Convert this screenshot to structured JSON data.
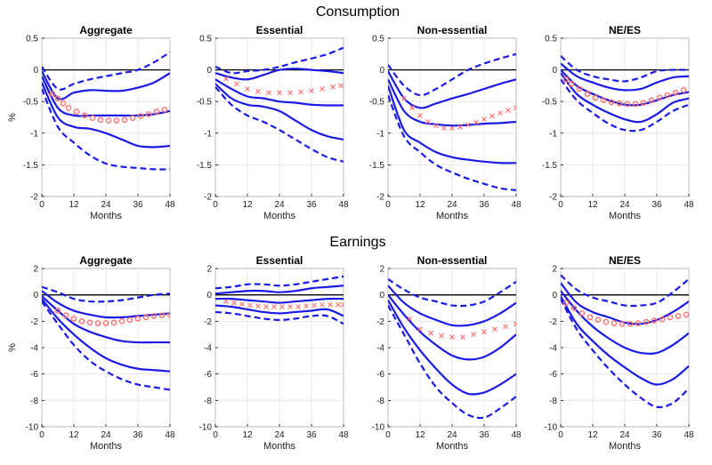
{
  "figure": {
    "rows": [
      {
        "title": "Consumption"
      },
      {
        "title": "Earnings"
      }
    ]
  },
  "colors": {
    "irf_line": "#1a1ae6",
    "marker": "#ff6e6e",
    "zero_line": "#000000",
    "grid": "#e4e4e4"
  },
  "chart_data": [
    {
      "type": "line",
      "title": "Aggregate",
      "xlabel": "Months",
      "ylabel": "%",
      "xlim": [
        0,
        48
      ],
      "ylim": [
        -2,
        0.5
      ],
      "xticks": [
        0,
        12,
        24,
        36,
        48
      ],
      "yticks": [
        0.5,
        0,
        -0.5,
        -1,
        -1.5,
        -2
      ],
      "x": [
        0,
        6,
        12,
        18,
        24,
        30,
        36,
        42,
        48
      ],
      "series": [
        {
          "style": "dashed",
          "values": [
            0.05,
            -0.3,
            -0.22,
            -0.15,
            -0.1,
            -0.05,
            0.0,
            0.12,
            0.28
          ]
        },
        {
          "style": "solid",
          "values": [
            -0.02,
            -0.45,
            -0.36,
            -0.32,
            -0.33,
            -0.33,
            -0.28,
            -0.2,
            -0.05
          ]
        },
        {
          "style": "solid",
          "values": [
            -0.1,
            -0.6,
            -0.72,
            -0.72,
            -0.72,
            -0.72,
            -0.72,
            -0.7,
            -0.65
          ]
        },
        {
          "style": "solid",
          "values": [
            -0.2,
            -0.75,
            -0.9,
            -0.93,
            -1.0,
            -1.1,
            -1.2,
            -1.22,
            -1.2
          ]
        },
        {
          "style": "dashed",
          "values": [
            -0.3,
            -0.9,
            -1.15,
            -1.35,
            -1.48,
            -1.53,
            -1.55,
            -1.57,
            -1.57
          ]
        },
        {
          "style": "markers",
          "marker": "o",
          "x": [
            4,
            6,
            8,
            10,
            13,
            16,
            19,
            22,
            25,
            28,
            31,
            34,
            37,
            40,
            43,
            46
          ],
          "values": [
            -0.38,
            -0.45,
            -0.53,
            -0.6,
            -0.66,
            -0.72,
            -0.76,
            -0.79,
            -0.8,
            -0.8,
            -0.79,
            -0.76,
            -0.73,
            -0.7,
            -0.66,
            -0.63
          ]
        }
      ]
    },
    {
      "type": "line",
      "title": "Essential",
      "xlabel": "Months",
      "ylabel": "",
      "xlim": [
        0,
        48
      ],
      "ylim": [
        -2,
        0.5
      ],
      "xticks": [
        0,
        12,
        24,
        36,
        48
      ],
      "yticks": [
        0.5,
        0,
        -0.5,
        -1,
        -1.5,
        -2
      ],
      "x": [
        0,
        6,
        12,
        18,
        24,
        30,
        36,
        42,
        48
      ],
      "series": [
        {
          "style": "dashed",
          "values": [
            0.05,
            -0.05,
            -0.02,
            0.0,
            0.05,
            0.12,
            0.18,
            0.25,
            0.35
          ]
        },
        {
          "style": "solid",
          "values": [
            -0.05,
            -0.12,
            -0.15,
            -0.08,
            0.0,
            0.02,
            0.0,
            -0.02,
            -0.05
          ]
        },
        {
          "style": "solid",
          "values": [
            -0.15,
            -0.3,
            -0.42,
            -0.45,
            -0.5,
            -0.52,
            -0.55,
            -0.56,
            -0.56
          ]
        },
        {
          "style": "solid",
          "values": [
            -0.22,
            -0.45,
            -0.55,
            -0.58,
            -0.65,
            -0.8,
            -0.95,
            -1.05,
            -1.1
          ]
        },
        {
          "style": "dashed",
          "values": [
            -0.27,
            -0.55,
            -0.72,
            -0.82,
            -0.95,
            -1.1,
            -1.25,
            -1.38,
            -1.45
          ]
        },
        {
          "style": "markers",
          "marker": "x",
          "x": [
            4,
            8,
            12,
            16,
            20,
            24,
            28,
            32,
            36,
            40,
            44,
            47
          ],
          "values": [
            -0.14,
            -0.22,
            -0.3,
            -0.34,
            -0.36,
            -0.36,
            -0.36,
            -0.35,
            -0.33,
            -0.3,
            -0.27,
            -0.25
          ]
        }
      ]
    },
    {
      "type": "line",
      "title": "Non-essential",
      "xlabel": "Months",
      "ylabel": "",
      "xlim": [
        0,
        48
      ],
      "ylim": [
        -2,
        0.5
      ],
      "xticks": [
        0,
        12,
        24,
        36,
        48
      ],
      "yticks": [
        0.5,
        0,
        -0.5,
        -1,
        -1.5,
        -2
      ],
      "x": [
        0,
        6,
        12,
        18,
        24,
        30,
        36,
        42,
        48
      ],
      "series": [
        {
          "style": "dashed",
          "values": [
            0.08,
            -0.25,
            -0.4,
            -0.3,
            -0.15,
            0.0,
            0.1,
            0.18,
            0.25
          ]
        },
        {
          "style": "solid",
          "values": [
            -0.02,
            -0.45,
            -0.6,
            -0.53,
            -0.45,
            -0.38,
            -0.3,
            -0.22,
            -0.15
          ]
        },
        {
          "style": "solid",
          "values": [
            -0.15,
            -0.65,
            -0.82,
            -0.86,
            -0.88,
            -0.87,
            -0.85,
            -0.84,
            -0.82
          ]
        },
        {
          "style": "solid",
          "values": [
            -0.25,
            -0.95,
            -1.15,
            -1.3,
            -1.38,
            -1.42,
            -1.45,
            -1.47,
            -1.47
          ]
        },
        {
          "style": "dashed",
          "values": [
            -0.4,
            -1.05,
            -1.3,
            -1.5,
            -1.62,
            -1.72,
            -1.8,
            -1.87,
            -1.9
          ]
        },
        {
          "style": "markers",
          "marker": "x",
          "x": [
            6,
            9,
            12,
            15,
            18,
            21,
            24,
            27,
            30,
            33,
            36,
            39,
            42,
            45,
            48
          ],
          "values": [
            -0.45,
            -0.6,
            -0.72,
            -0.82,
            -0.88,
            -0.92,
            -0.92,
            -0.9,
            -0.87,
            -0.83,
            -0.78,
            -0.73,
            -0.68,
            -0.64,
            -0.6
          ]
        }
      ]
    },
    {
      "type": "line",
      "title": "NE/ES",
      "xlabel": "Months",
      "ylabel": "",
      "xlim": [
        0,
        48
      ],
      "ylim": [
        -2,
        0.5
      ],
      "xticks": [
        0,
        12,
        24,
        36,
        48
      ],
      "yticks": [
        0.5,
        0,
        -0.5,
        -1,
        -1.5,
        -2
      ],
      "x": [
        0,
        6,
        12,
        18,
        24,
        30,
        36,
        42,
        48
      ],
      "series": [
        {
          "style": "dashed",
          "values": [
            0.22,
            0.0,
            -0.1,
            -0.15,
            -0.18,
            -0.12,
            -0.02,
            0.0,
            0.0
          ]
        },
        {
          "style": "solid",
          "values": [
            0.1,
            -0.1,
            -0.2,
            -0.28,
            -0.32,
            -0.3,
            -0.2,
            -0.12,
            -0.1
          ]
        },
        {
          "style": "solid",
          "values": [
            0.0,
            -0.25,
            -0.38,
            -0.48,
            -0.55,
            -0.55,
            -0.48,
            -0.4,
            -0.35
          ]
        },
        {
          "style": "solid",
          "values": [
            -0.05,
            -0.38,
            -0.55,
            -0.68,
            -0.78,
            -0.82,
            -0.7,
            -0.52,
            -0.45
          ]
        },
        {
          "style": "dashed",
          "values": [
            -0.15,
            -0.48,
            -0.68,
            -0.85,
            -0.95,
            -0.95,
            -0.82,
            -0.65,
            -0.55
          ]
        },
        {
          "style": "markers",
          "marker": "o",
          "x": [
            2,
            4,
            7,
            10,
            13,
            16,
            19,
            22,
            25,
            28,
            31,
            34,
            37,
            40,
            43,
            46
          ],
          "values": [
            -0.15,
            -0.22,
            -0.3,
            -0.38,
            -0.44,
            -0.48,
            -0.51,
            -0.53,
            -0.54,
            -0.54,
            -0.52,
            -0.48,
            -0.44,
            -0.4,
            -0.36,
            -0.32
          ]
        }
      ]
    },
    {
      "type": "line",
      "title": "Aggregate",
      "xlabel": "Months",
      "ylabel": "%",
      "xlim": [
        0,
        48
      ],
      "ylim": [
        -10,
        2
      ],
      "xticks": [
        0,
        12,
        24,
        36,
        48
      ],
      "yticks": [
        2,
        0,
        -2,
        -4,
        -6,
        -8,
        -10
      ],
      "x": [
        0,
        6,
        12,
        18,
        24,
        30,
        36,
        42,
        48
      ],
      "series": [
        {
          "style": "dashed",
          "values": [
            0.6,
            0.2,
            -0.3,
            -0.5,
            -0.5,
            -0.4,
            -0.2,
            0.0,
            0.1
          ]
        },
        {
          "style": "solid",
          "values": [
            0.3,
            -0.6,
            -1.2,
            -1.5,
            -1.7,
            -1.7,
            -1.6,
            -1.5,
            -1.4
          ]
        },
        {
          "style": "solid",
          "values": [
            -0.1,
            -1.2,
            -2.2,
            -2.8,
            -3.2,
            -3.5,
            -3.6,
            -3.6,
            -3.6
          ]
        },
        {
          "style": "solid",
          "values": [
            -0.3,
            -1.8,
            -3.0,
            -4.0,
            -4.8,
            -5.3,
            -5.6,
            -5.7,
            -5.8
          ]
        },
        {
          "style": "dashed",
          "values": [
            -0.5,
            -2.2,
            -3.8,
            -5.0,
            -5.8,
            -6.4,
            -6.8,
            -7.0,
            -7.2
          ]
        },
        {
          "style": "markers",
          "marker": "o",
          "x": [
            6,
            9,
            12,
            15,
            18,
            21,
            24,
            27,
            30,
            33,
            36,
            39,
            42,
            45,
            48
          ],
          "values": [
            -1.2,
            -1.55,
            -1.8,
            -2.0,
            -2.1,
            -2.15,
            -2.15,
            -2.1,
            -2.0,
            -1.9,
            -1.8,
            -1.7,
            -1.6,
            -1.55,
            -1.5
          ]
        }
      ]
    },
    {
      "type": "line",
      "title": "Essential",
      "xlabel": "Months",
      "ylabel": "",
      "xlim": [
        0,
        48
      ],
      "ylim": [
        -10,
        2
      ],
      "xticks": [
        0,
        12,
        24,
        36,
        48
      ],
      "yticks": [
        2,
        0,
        -2,
        -4,
        -6,
        -8,
        -10
      ],
      "x": [
        0,
        6,
        12,
        18,
        24,
        30,
        36,
        42,
        48
      ],
      "series": [
        {
          "style": "dashed",
          "values": [
            0.5,
            0.6,
            0.8,
            0.8,
            0.7,
            0.8,
            1.0,
            1.2,
            1.4
          ]
        },
        {
          "style": "solid",
          "values": [
            0.1,
            0.2,
            0.3,
            0.3,
            0.2,
            0.3,
            0.5,
            0.6,
            0.7
          ]
        },
        {
          "style": "solid",
          "values": [
            -0.3,
            -0.3,
            -0.4,
            -0.5,
            -0.6,
            -0.5,
            -0.4,
            -0.3,
            -0.3
          ]
        },
        {
          "style": "solid",
          "values": [
            -0.8,
            -0.9,
            -1.1,
            -1.3,
            -1.4,
            -1.3,
            -1.2,
            -1.1,
            -1.6
          ]
        },
        {
          "style": "dashed",
          "values": [
            -1.3,
            -1.4,
            -1.6,
            -1.8,
            -1.9,
            -1.8,
            -1.6,
            -1.6,
            -2.2
          ]
        },
        {
          "style": "markers",
          "marker": "x",
          "x": [
            4,
            7,
            10,
            13,
            16,
            19,
            22,
            25,
            28,
            31,
            34,
            37,
            40,
            43,
            46,
            48
          ],
          "values": [
            -0.5,
            -0.6,
            -0.7,
            -0.8,
            -0.85,
            -0.9,
            -0.9,
            -0.9,
            -0.9,
            -0.9,
            -0.85,
            -0.8,
            -0.75,
            -0.75,
            -0.75,
            -0.75
          ]
        }
      ]
    },
    {
      "type": "line",
      "title": "Non-essential",
      "xlabel": "Months",
      "ylabel": "",
      "xlim": [
        0,
        48
      ],
      "ylim": [
        -10,
        2
      ],
      "xticks": [
        0,
        12,
        24,
        36,
        48
      ],
      "yticks": [
        2,
        0,
        -2,
        -4,
        -6,
        -8,
        -10
      ],
      "x": [
        0,
        6,
        12,
        18,
        24,
        30,
        36,
        42,
        48
      ],
      "series": [
        {
          "style": "dashed",
          "values": [
            1.2,
            0.4,
            -0.2,
            -0.5,
            -0.8,
            -0.8,
            -0.5,
            0.2,
            1.0
          ]
        },
        {
          "style": "solid",
          "values": [
            0.7,
            -0.6,
            -1.4,
            -1.9,
            -2.3,
            -2.3,
            -2.0,
            -1.4,
            -0.6
          ]
        },
        {
          "style": "solid",
          "values": [
            0.0,
            -1.5,
            -2.8,
            -3.8,
            -4.6,
            -4.9,
            -4.7,
            -4.0,
            -3.0
          ]
        },
        {
          "style": "solid",
          "values": [
            -0.4,
            -2.5,
            -4.2,
            -5.6,
            -6.8,
            -7.5,
            -7.4,
            -6.8,
            -6.0
          ]
        },
        {
          "style": "dashed",
          "values": [
            -0.8,
            -3.0,
            -5.2,
            -7.0,
            -8.2,
            -9.1,
            -9.3,
            -8.6,
            -7.7
          ]
        },
        {
          "style": "markers",
          "marker": "x",
          "x": [
            8,
            12,
            16,
            20,
            24,
            28,
            32,
            36,
            40,
            44,
            48
          ],
          "values": [
            -1.8,
            -2.6,
            -2.9,
            -3.1,
            -3.2,
            -3.2,
            -3.0,
            -2.8,
            -2.6,
            -2.4,
            -2.2
          ]
        }
      ]
    },
    {
      "type": "line",
      "title": "NE/ES",
      "xlabel": "Months",
      "ylabel": "",
      "xlim": [
        0,
        48
      ],
      "ylim": [
        -10,
        2
      ],
      "xticks": [
        0,
        12,
        24,
        36,
        48
      ],
      "yticks": [
        2,
        0,
        -2,
        -4,
        -6,
        -8,
        -10
      ],
      "x": [
        0,
        6,
        12,
        18,
        24,
        30,
        36,
        42,
        48
      ],
      "series": [
        {
          "style": "dashed",
          "values": [
            1.5,
            0.4,
            -0.2,
            -0.5,
            -0.8,
            -0.8,
            -0.6,
            0.2,
            1.2
          ]
        },
        {
          "style": "solid",
          "values": [
            0.9,
            -0.6,
            -1.3,
            -1.7,
            -2.1,
            -2.2,
            -1.9,
            -1.3,
            -0.5
          ]
        },
        {
          "style": "solid",
          "values": [
            0.3,
            -1.2,
            -2.4,
            -3.3,
            -4.0,
            -4.4,
            -4.4,
            -3.8,
            -2.9
          ]
        },
        {
          "style": "solid",
          "values": [
            -0.1,
            -2.2,
            -3.5,
            -4.6,
            -5.5,
            -6.3,
            -6.8,
            -6.4,
            -5.4
          ]
        },
        {
          "style": "dashed",
          "values": [
            -0.3,
            -2.6,
            -4.2,
            -5.6,
            -6.8,
            -7.8,
            -8.5,
            -8.2,
            -7.1
          ]
        },
        {
          "style": "markers",
          "marker": "o",
          "x": [
            2,
            5,
            8,
            11,
            14,
            17,
            20,
            23,
            26,
            29,
            32,
            35,
            38,
            41,
            44,
            47
          ],
          "values": [
            -0.6,
            -1.0,
            -1.4,
            -1.7,
            -1.9,
            -2.05,
            -2.15,
            -2.2,
            -2.2,
            -2.15,
            -2.05,
            -1.95,
            -1.85,
            -1.7,
            -1.6,
            -1.5
          ]
        }
      ]
    }
  ]
}
